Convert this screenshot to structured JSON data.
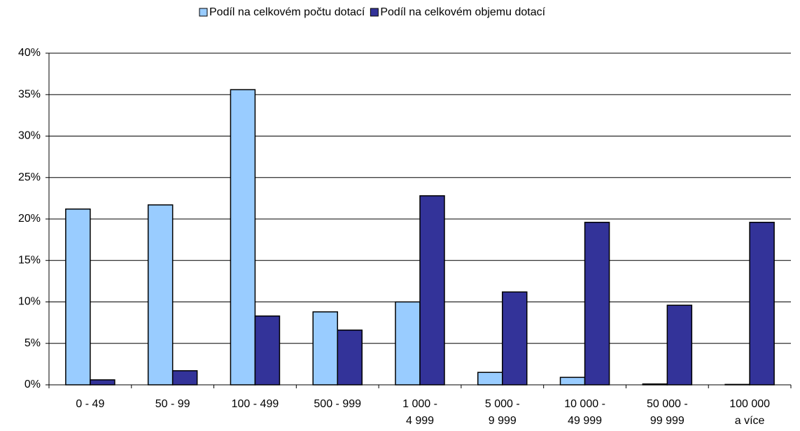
{
  "chart_data": {
    "type": "bar",
    "categories": [
      [
        "0  - 49"
      ],
      [
        "50 - 99"
      ],
      [
        "100 - 499"
      ],
      [
        "500 - 999"
      ],
      [
        "1 000 -",
        "4 999"
      ],
      [
        "5 000 -",
        "9 999"
      ],
      [
        "10 000 -",
        "49 999"
      ],
      [
        "50 000 -",
        "99 999"
      ],
      [
        "100 000",
        "a více"
      ]
    ],
    "series": [
      {
        "name": "Podíl na celkovém počtu dotací",
        "color": "#99ccff",
        "values": [
          21.2,
          21.7,
          35.6,
          8.8,
          10.0,
          1.5,
          0.9,
          0.1,
          0.05
        ]
      },
      {
        "name": "Podíl na celkovém objemu dotací",
        "color": "#333399",
        "values": [
          0.6,
          1.7,
          8.3,
          6.6,
          22.8,
          11.2,
          19.6,
          9.6,
          19.6
        ]
      }
    ],
    "ylim": [
      0,
      40
    ],
    "yticks": [
      {
        "value": 0,
        "label": "0%"
      },
      {
        "value": 5,
        "label": "5%"
      },
      {
        "value": 10,
        "label": "10%"
      },
      {
        "value": 15,
        "label": "15%"
      },
      {
        "value": 20,
        "label": "20%"
      },
      {
        "value": 25,
        "label": "25%"
      },
      {
        "value": 30,
        "label": "30%"
      },
      {
        "value": 35,
        "label": "35%"
      },
      {
        "value": 40,
        "label": "40%"
      }
    ],
    "grid": true,
    "legend": "top"
  }
}
